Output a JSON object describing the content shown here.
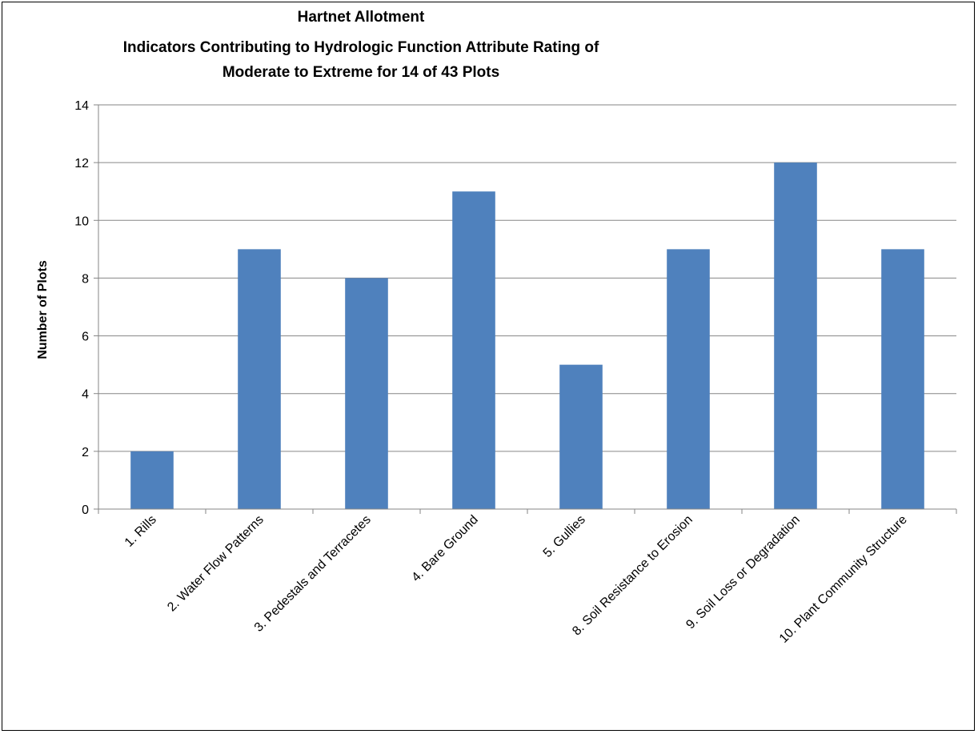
{
  "chart_data": {
    "type": "bar",
    "title": [
      "Hartnet Allotment",
      "Indicators Contributing to Hydrologic Function Attribute Rating of",
      "Moderate to Extreme for 14 of 43 Plots"
    ],
    "xlabel": "",
    "ylabel": "Number of Plots",
    "ylim": [
      0,
      14
    ],
    "yticks": [
      0,
      2,
      4,
      6,
      8,
      10,
      12,
      14
    ],
    "grid": true,
    "legend": "none",
    "bar_color": "#4f81bd",
    "categories": [
      "1. Rills",
      "2. Water Flow Patterns",
      "3. Pedestals and Terracetes",
      "4. Bare Ground",
      "5. Gullies",
      "8. Soil Resistance to Erosion",
      "9. Soil Loss or Degradation",
      "10. Plant Community Structure"
    ],
    "values": [
      2,
      9,
      8,
      11,
      5,
      9,
      12,
      9
    ]
  }
}
